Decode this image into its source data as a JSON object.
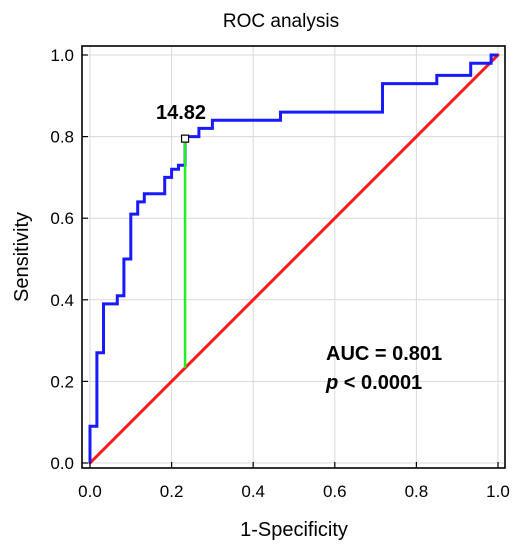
{
  "chart_data": {
    "type": "line",
    "title": "ROC analysis",
    "xlabel": "1-Specificity",
    "ylabel": "Sensitivity",
    "xlim": [
      0,
      1
    ],
    "ylim": [
      0,
      1
    ],
    "xticks": [
      "0.0",
      "0.2",
      "0.4",
      "0.6",
      "0.8",
      "1.0"
    ],
    "yticks": [
      "0.0",
      "0.2",
      "0.4",
      "0.6",
      "0.8",
      "1.0"
    ],
    "grid": true,
    "colors": {
      "roc": "#1a1aff",
      "reference": "#ff1a1a",
      "youden": "#22ee22",
      "frame": "#000000",
      "grid": "#d9d9d9"
    },
    "series": [
      {
        "x": [
          0.0,
          0.0,
          0.017,
          0.017,
          0.033,
          0.033,
          0.067,
          0.067,
          0.083,
          0.083,
          0.1,
          0.1,
          0.117,
          0.117,
          0.133,
          0.133,
          0.183,
          0.183,
          0.2,
          0.2,
          0.217,
          0.217,
          0.233,
          0.233,
          0.25,
          0.25,
          0.267,
          0.267,
          0.283,
          0.283,
          0.3,
          0.3,
          0.333,
          0.333,
          0.467,
          0.467,
          0.717,
          0.717,
          0.85,
          0.85,
          0.933,
          0.933,
          0.983,
          0.983,
          1.0
        ],
        "y": [
          0.0,
          0.09,
          0.09,
          0.27,
          0.27,
          0.39,
          0.39,
          0.41,
          0.41,
          0.5,
          0.5,
          0.61,
          0.61,
          0.64,
          0.64,
          0.66,
          0.66,
          0.7,
          0.7,
          0.72,
          0.72,
          0.73,
          0.73,
          0.8,
          0.8,
          0.8,
          0.8,
          0.82,
          0.82,
          0.82,
          0.82,
          0.84,
          0.84,
          0.84,
          0.84,
          0.86,
          0.86,
          0.93,
          0.93,
          0.95,
          0.95,
          0.98,
          0.98,
          1.0,
          1.0
        ]
      },
      {
        "x": [
          0,
          1
        ],
        "y": [
          0,
          1
        ]
      }
    ],
    "cutoff": {
      "label": "14.82",
      "x": 0.233,
      "y": 0.795
    },
    "annotations": {
      "auc": "AUC = 0.801",
      "p_symbol": "p",
      "p_rest": " < 0.0001"
    }
  }
}
